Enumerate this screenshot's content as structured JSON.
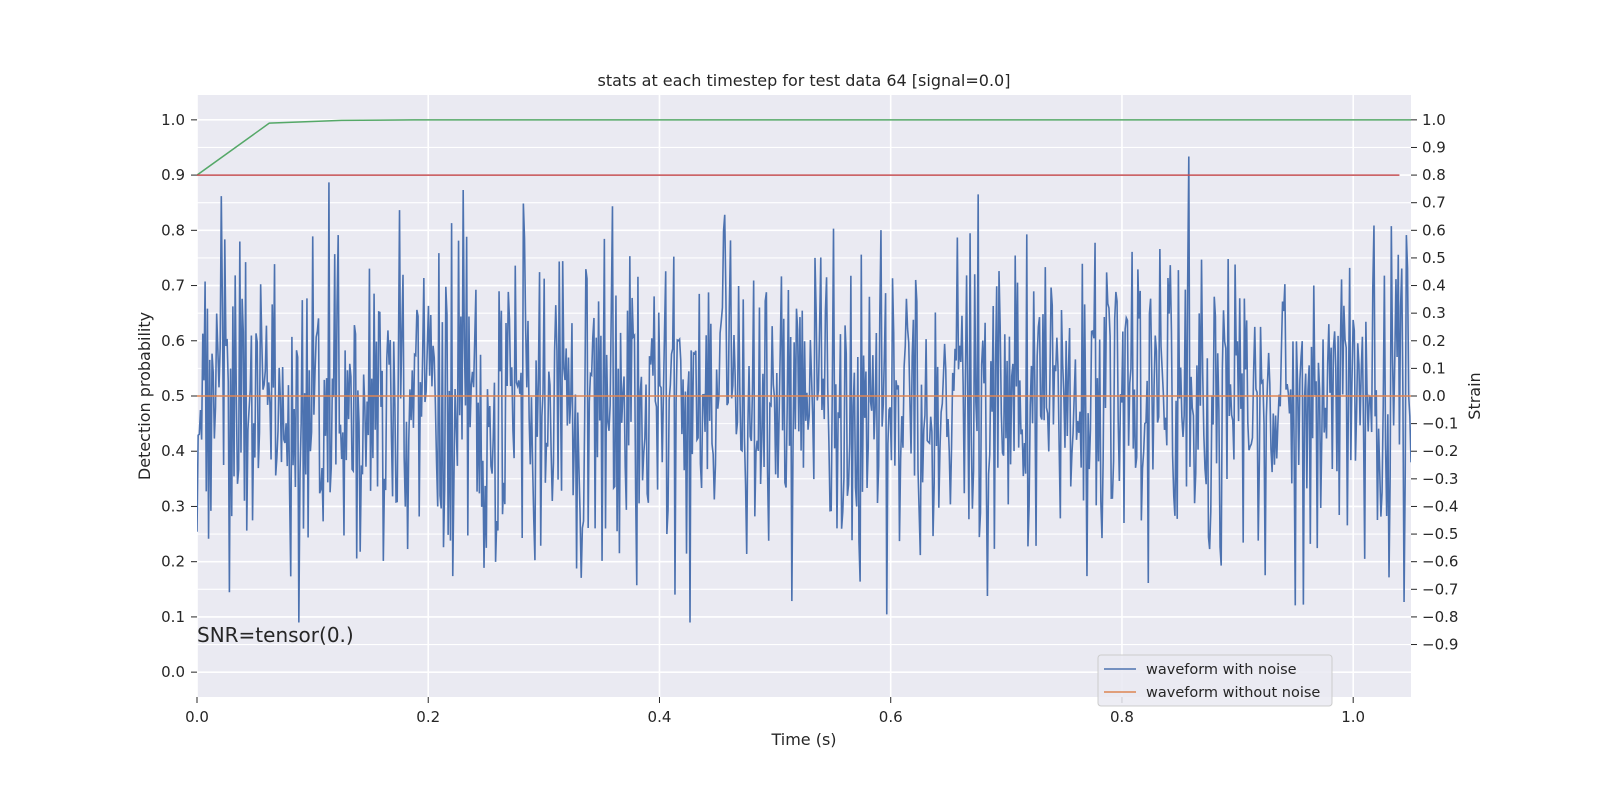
{
  "chart_data": {
    "type": "line",
    "title": "stats at each timestep for test data 64 [signal=0.0]",
    "xlabel": "Time (s)",
    "ylabel": "Detection probability",
    "y2label": "Strain",
    "xlim": [
      0.0,
      1.05
    ],
    "ylim": [
      -0.045,
      1.045
    ],
    "y2lim": [
      -1.09,
      1.09
    ],
    "xticks": [
      0.0,
      0.2,
      0.4,
      0.6,
      0.8,
      1.0
    ],
    "xtick_labels": [
      "0.0",
      "0.2",
      "0.4",
      "0.6",
      "0.8",
      "1.0"
    ],
    "yticks": [
      0.0,
      0.1,
      0.2,
      0.3,
      0.4,
      0.5,
      0.6,
      0.7,
      0.8,
      0.9,
      1.0
    ],
    "ytick_labels": [
      "0.0",
      "0.1",
      "0.2",
      "0.3",
      "0.4",
      "0.5",
      "0.6",
      "0.7",
      "0.8",
      "0.9",
      "1.0"
    ],
    "y2ticks": [
      -0.9,
      -0.8,
      -0.7,
      -0.6,
      -0.5,
      -0.4,
      -0.3,
      -0.2,
      -0.1,
      0.0,
      0.1,
      0.2,
      0.3,
      0.4,
      0.5,
      0.6,
      0.7,
      0.8,
      0.9,
      1.0
    ],
    "y2tick_labels": [
      "−0.9",
      "−0.8",
      "−0.7",
      "−0.6",
      "−0.5",
      "−0.4",
      "−0.3",
      "−0.2",
      "−0.1",
      "0.0",
      "0.1",
      "0.2",
      "0.3",
      "0.4",
      "0.5",
      "0.6",
      "0.7",
      "0.8",
      "0.9",
      "1.0"
    ],
    "annotation": "SNR=tensor(0.)",
    "grid": true,
    "legend_position": "bottom-right",
    "background_color": "#eaeaf2",
    "series": [
      {
        "name": "waveform with noise",
        "axis": "right",
        "color": "#4c72b0",
        "noise": {
          "count": 1050,
          "x_start": 0.0,
          "x_end": 1.05,
          "mean": 0.0,
          "amplitude": 0.29,
          "min": -0.82,
          "max": 0.92,
          "seed": 64
        }
      },
      {
        "name": "waveform without noise",
        "axis": "right",
        "color": "#dd8452",
        "x": [
          0.0,
          1.05
        ],
        "y": [
          0.0,
          0.0
        ]
      },
      {
        "axis": "left",
        "color": "#55a868",
        "x": [
          0.0,
          0.0625,
          0.125,
          0.1875,
          0.25,
          1.05
        ],
        "y": [
          0.9,
          0.994,
          0.999,
          1.0,
          1.0,
          1.0
        ]
      },
      {
        "axis": "left",
        "color": "#c44e52",
        "x": [
          0.0,
          1.04
        ],
        "y": [
          0.9,
          0.9
        ]
      }
    ],
    "legend_items": [
      {
        "label": "waveform with noise",
        "color": "#4c72b0"
      },
      {
        "label": "waveform without noise",
        "color": "#dd8452"
      }
    ]
  }
}
